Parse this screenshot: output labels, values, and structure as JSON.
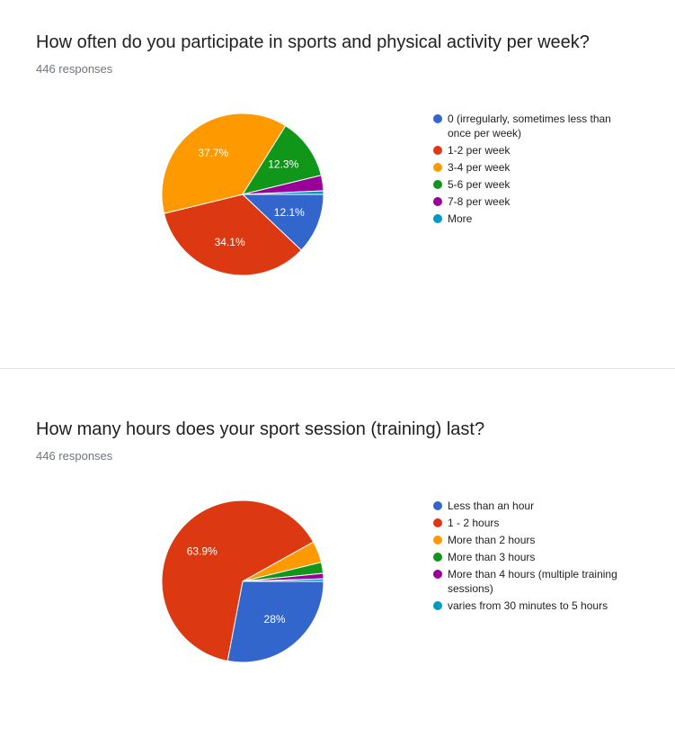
{
  "chart_data": [
    {
      "type": "pie",
      "title": "How often do you participate in sports and physical activity per week?",
      "subtitle": "446 responses",
      "categories": [
        "0 (irregularly, sometimes less than once per week)",
        "1-2 per week",
        "3-4 per week",
        "5-6 per week",
        "7-8 per week",
        "More"
      ],
      "values": [
        12.1,
        34.1,
        37.7,
        12.3,
        3.1,
        0.7
      ],
      "value_labels": [
        "12.1%",
        "34.1%",
        "37.7%",
        "12.3%",
        null,
        null
      ],
      "colors": [
        "#3366cc",
        "#dc3912",
        "#ff9900",
        "#109618",
        "#990099",
        "#0099c6"
      ]
    },
    {
      "type": "pie",
      "title": "How many hours does your sport session (training) last?",
      "subtitle": "446 responses",
      "categories": [
        "Less than an hour",
        "1 - 2 hours",
        "More than 2 hours",
        "More than 3 hours",
        "More than 4 hours (multiple training sessions)",
        "varies from 30 minutes to 5 hours"
      ],
      "values": [
        28,
        63.9,
        4.3,
        2.2,
        1.1,
        0.5
      ],
      "value_labels": [
        "28%",
        "63.9%",
        null,
        null,
        null,
        null
      ],
      "colors": [
        "#3366cc",
        "#dc3912",
        "#ff9900",
        "#109618",
        "#990099",
        "#0099c6"
      ]
    }
  ]
}
